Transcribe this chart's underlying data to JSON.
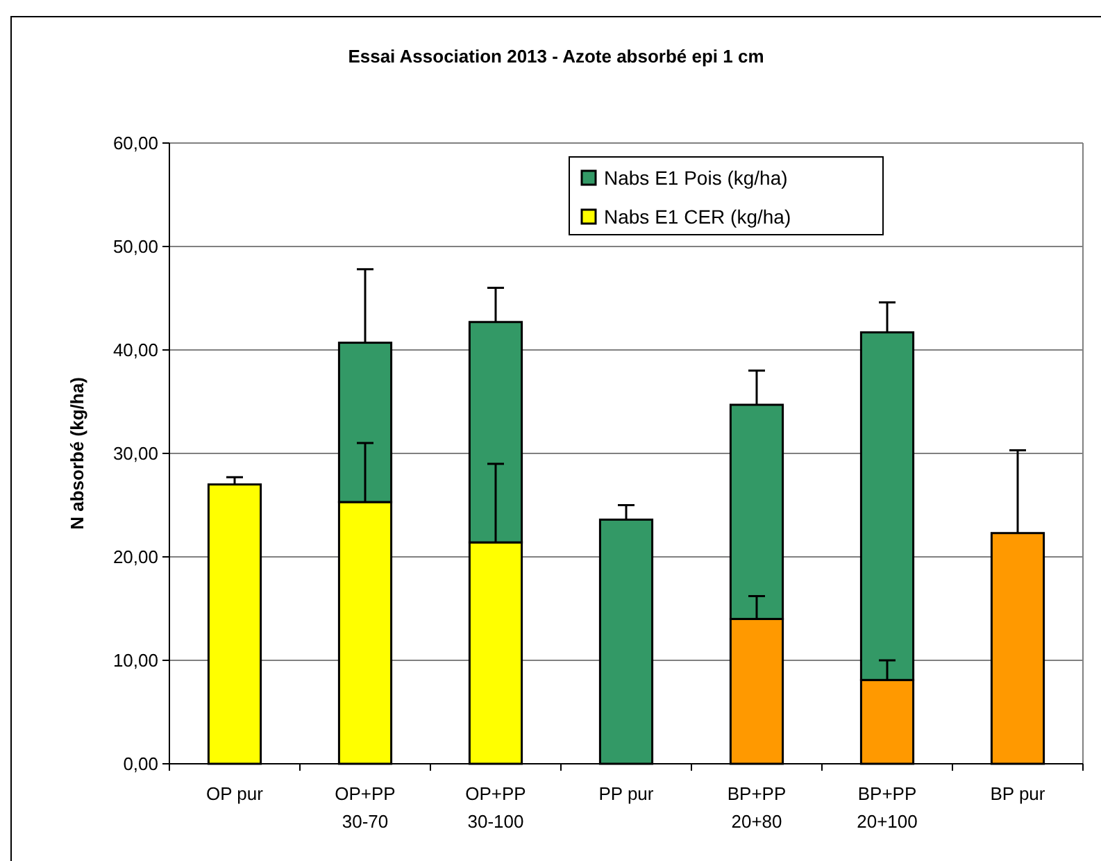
{
  "chart_data": {
    "type": "bar",
    "title": "Essai Association 2013 - Azote absorbé epi 1 cm",
    "ylabel": "N absorbé (kg/ha)",
    "categories": [
      "OP pur",
      "OP+PP\n30-70",
      "OP+PP\n30-100",
      "PP pur",
      "BP+PP\n20+80",
      "BP+PP\n20+100",
      "BP pur"
    ],
    "stacked": true,
    "grid": "y",
    "legend": "top",
    "ylim": [
      0,
      60
    ],
    "yticks": [
      {
        "value": 0,
        "label": "0,00"
      },
      {
        "value": 10,
        "label": "10,00"
      },
      {
        "value": 20,
        "label": "20,00"
      },
      {
        "value": 30,
        "label": "30,00"
      },
      {
        "value": 40,
        "label": "40,00"
      },
      {
        "value": 50,
        "label": "50,00"
      },
      {
        "value": 60,
        "label": "60,00"
      }
    ],
    "series": [
      {
        "name": "Nabs E1 CER (kg/ha)",
        "color": "#ffff00",
        "colors": [
          "#ffff00",
          "#ffff00",
          "#ffff00",
          null,
          "#ff9900",
          "#ff9900",
          "#ff9900"
        ],
        "values": [
          27.0,
          25.3,
          21.4,
          null,
          14.0,
          8.1,
          22.3
        ],
        "errors": [
          [
            27.0,
            27.7
          ],
          [
            25.3,
            31.0
          ],
          [
            21.4,
            29.0
          ],
          null,
          [
            14.0,
            16.2
          ],
          [
            8.1,
            10.0
          ],
          [
            22.3,
            30.3
          ]
        ]
      },
      {
        "name": "Nabs E1 Pois (kg/ha)",
        "color": "#339966",
        "values": [
          null,
          15.4,
          21.3,
          23.6,
          20.7,
          33.6,
          null
        ],
        "errors": [
          null,
          [
            40.7,
            47.8
          ],
          [
            42.7,
            46.0
          ],
          [
            23.6,
            25.0
          ],
          [
            34.7,
            38.0
          ],
          [
            41.7,
            44.6
          ],
          null
        ]
      }
    ]
  }
}
